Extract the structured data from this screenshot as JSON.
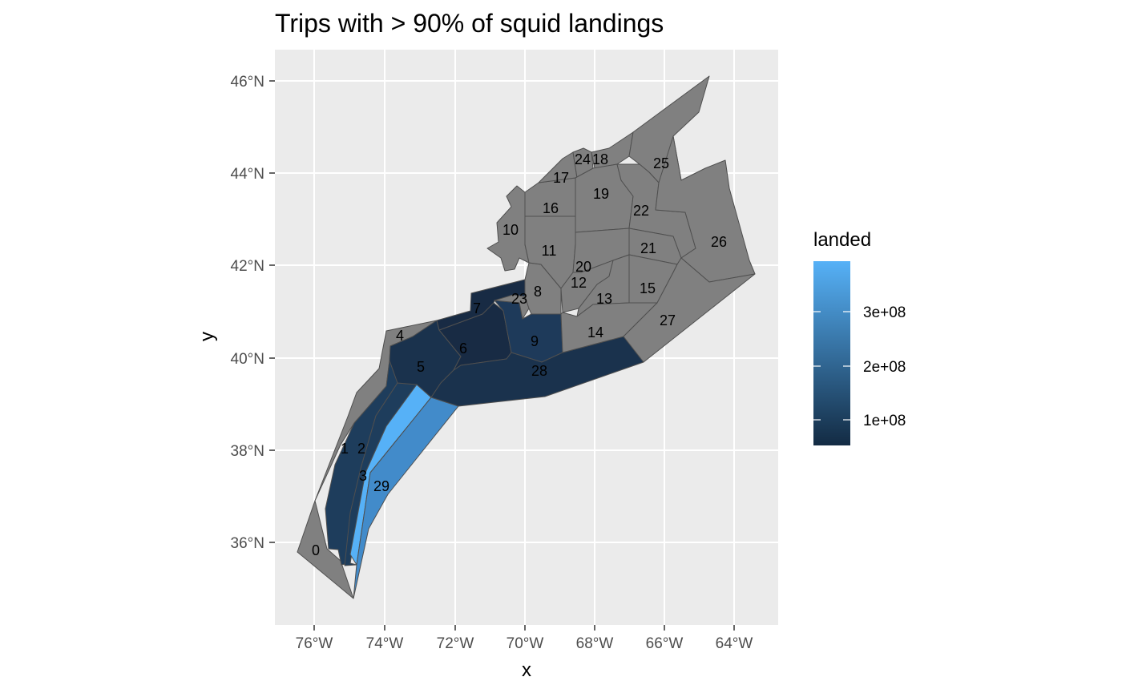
{
  "map": {
    "title": "Trips with > 90% of squid landings",
    "x_label": "x",
    "y_label": "y",
    "lon_ticks": [
      "76°W",
      "74°W",
      "72°W",
      "70°W",
      "68°W",
      "66°W",
      "64°W"
    ],
    "lat_ticks": [
      "36°N",
      "38°N",
      "40°N",
      "42°N",
      "44°N",
      "46°N"
    ],
    "lon_range": [
      -77.1,
      -62.9
    ],
    "lat_range": [
      34.1,
      46.7
    ],
    "no_data_color": "#808080",
    "zones": [
      {
        "id": "0",
        "label": "0",
        "fill": "#808080"
      },
      {
        "id": "1",
        "label": "1",
        "fill": "#1e3d5c"
      },
      {
        "id": "2",
        "label": "2",
        "fill": "#1e3d5c"
      },
      {
        "id": "3",
        "label": "3",
        "fill": "#56b1f7"
      },
      {
        "id": "4",
        "label": "4",
        "fill": "#808080"
      },
      {
        "id": "5",
        "label": "5",
        "fill": "#1a324d"
      },
      {
        "id": "6",
        "label": "6",
        "fill": "#182b44"
      },
      {
        "id": "7",
        "label": "7",
        "fill": "#182b44"
      },
      {
        "id": "8",
        "label": "8",
        "fill": "#808080"
      },
      {
        "id": "9",
        "label": "9",
        "fill": "#1e3a5a"
      },
      {
        "id": "10",
        "label": "10",
        "fill": "#808080"
      },
      {
        "id": "11",
        "label": "11",
        "fill": "#808080"
      },
      {
        "id": "12",
        "label": "12",
        "fill": "#808080"
      },
      {
        "id": "13",
        "label": "13",
        "fill": "#808080"
      },
      {
        "id": "14",
        "label": "14",
        "fill": "#808080"
      },
      {
        "id": "15",
        "label": "15",
        "fill": "#808080"
      },
      {
        "id": "16",
        "label": "16",
        "fill": "#808080"
      },
      {
        "id": "17",
        "label": "17",
        "fill": "#808080"
      },
      {
        "id": "18",
        "label": "18",
        "fill": "#808080"
      },
      {
        "id": "19",
        "label": "19",
        "fill": "#808080"
      },
      {
        "id": "20",
        "label": "20",
        "fill": "#808080"
      },
      {
        "id": "21",
        "label": "21",
        "fill": "#808080"
      },
      {
        "id": "22",
        "label": "22",
        "fill": "#808080"
      },
      {
        "id": "23",
        "label": "23",
        "fill": "#808080"
      },
      {
        "id": "24",
        "label": "24",
        "fill": "#808080"
      },
      {
        "id": "25",
        "label": "25",
        "fill": "#808080"
      },
      {
        "id": "26",
        "label": "26",
        "fill": "#808080"
      },
      {
        "id": "27",
        "label": "27",
        "fill": "#808080"
      },
      {
        "id": "28",
        "label": "28",
        "fill": "#1a324d"
      },
      {
        "id": "29",
        "label": "29",
        "fill": "#428bca"
      }
    ]
  },
  "legend": {
    "title": "landed",
    "low_color": "#132b43",
    "high_color": "#56b1f7",
    "breaks": [
      "1e+08",
      "2e+08",
      "3e+08"
    ]
  },
  "colors": {
    "panel_background": "#ebebeb",
    "grid_line": "#ffffff",
    "zone_border": "#4f4f4f"
  }
}
